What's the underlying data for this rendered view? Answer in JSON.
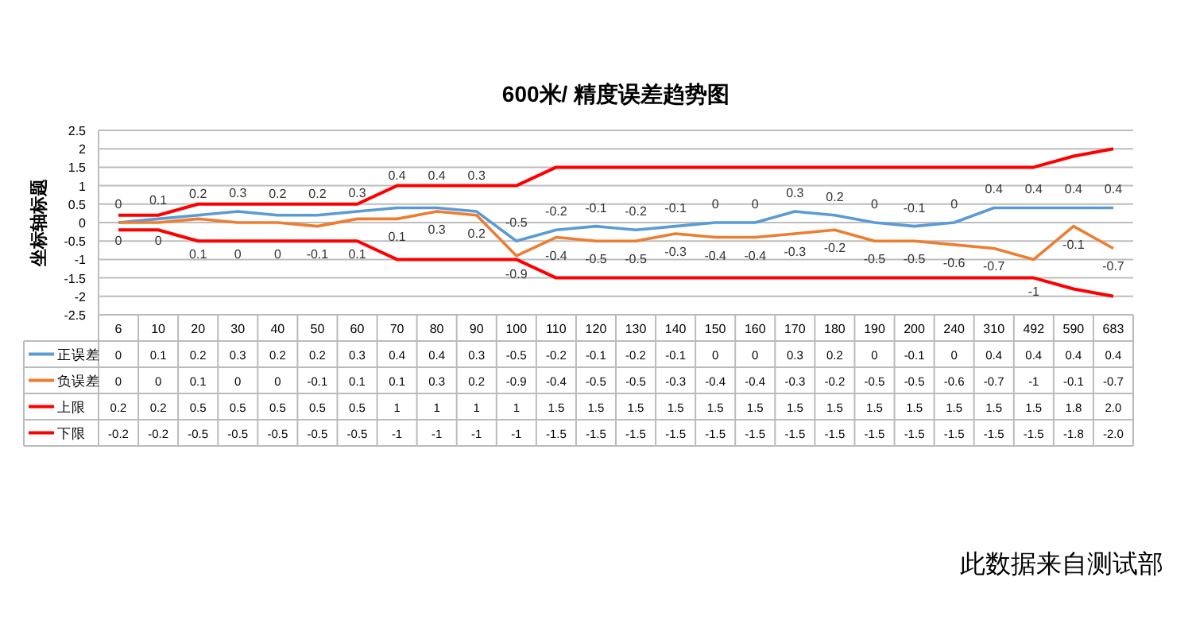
{
  "chart_data": {
    "type": "line",
    "title": "600米/ 精度误差趋势图",
    "ylabel": "坐标轴标题",
    "categories": [
      "6",
      "10",
      "20",
      "30",
      "40",
      "50",
      "60",
      "70",
      "80",
      "90",
      "100",
      "110",
      "120",
      "130",
      "140",
      "150",
      "160",
      "170",
      "180",
      "190",
      "200",
      "240",
      "310",
      "492",
      "590",
      "683"
    ],
    "ylim": [
      -2.5,
      2.5
    ],
    "yticks": [
      -2.5,
      -2,
      -1.5,
      -1,
      -0.5,
      0,
      0.5,
      1,
      1.5,
      2,
      2.5
    ],
    "grid": "y",
    "legend": "bottom",
    "marker": "none",
    "line_style": "solid",
    "series": [
      {
        "name": "正误差",
        "color": "#5b9bd5",
        "values": [
          0,
          0.1,
          0.2,
          0.3,
          0.2,
          0.2,
          0.3,
          0.4,
          0.4,
          0.3,
          -0.5,
          -0.2,
          -0.1,
          -0.2,
          -0.1,
          0,
          0,
          0.3,
          0.2,
          0,
          -0.1,
          0,
          0.4,
          0.4,
          0.4,
          0.4
        ],
        "value_labels": [
          "0",
          "0.1",
          "0.2",
          "0.3",
          "0.2",
          "0.2",
          "0.3",
          "0.4",
          "0.4",
          "0.3",
          "-0.5",
          "-0.2",
          "-0.1",
          "-0.2",
          "-0.1",
          "0",
          "0",
          "0.3",
          "0.2",
          "0",
          "-0.1",
          "0",
          "0.4",
          "0.4",
          "0.4",
          "0.4"
        ]
      },
      {
        "name": "负误差",
        "color": "#ed7d31",
        "values": [
          0,
          0,
          0.1,
          0,
          0,
          -0.1,
          0.1,
          0.1,
          0.3,
          0.2,
          -0.9,
          -0.4,
          -0.5,
          -0.5,
          -0.3,
          -0.4,
          -0.4,
          -0.3,
          -0.2,
          -0.5,
          -0.5,
          -0.6,
          -0.7,
          -1,
          -0.1,
          -0.7
        ],
        "value_labels": [
          "0",
          "0",
          "0.1",
          "0",
          "0",
          "-0.1",
          "0.1",
          "0.1",
          "0.3",
          "0.2",
          "-0.9",
          "-0.4",
          "-0.5",
          "-0.5",
          "-0.3",
          "-0.4",
          "-0.4",
          "-0.3",
          "-0.2",
          "-0.5",
          "-0.5",
          "-0.6",
          "-0.7",
          "-1",
          "-0.1",
          "-0.7"
        ]
      },
      {
        "name": "上限",
        "color": "#ff0000",
        "values": [
          0.2,
          0.2,
          0.5,
          0.5,
          0.5,
          0.5,
          0.5,
          1,
          1,
          1,
          1,
          1.5,
          1.5,
          1.5,
          1.5,
          1.5,
          1.5,
          1.5,
          1.5,
          1.5,
          1.5,
          1.5,
          1.5,
          1.5,
          1.8,
          2.0
        ],
        "value_labels": [
          "0.2",
          "0.2",
          "0.5",
          "0.5",
          "0.5",
          "0.5",
          "0.5",
          "1",
          "1",
          "1",
          "1",
          "1.5",
          "1.5",
          "1.5",
          "1.5",
          "1.5",
          "1.5",
          "1.5",
          "1.5",
          "1.5",
          "1.5",
          "1.5",
          "1.5",
          "1.5",
          "1.8",
          "2.0"
        ]
      },
      {
        "name": "下限",
        "color": "#ff0000",
        "values": [
          -0.2,
          -0.2,
          -0.5,
          -0.5,
          -0.5,
          -0.5,
          -0.5,
          -1,
          -1,
          -1,
          -1,
          -1.5,
          -1.5,
          -1.5,
          -1.5,
          -1.5,
          -1.5,
          -1.5,
          -1.5,
          -1.5,
          -1.5,
          -1.5,
          -1.5,
          -1.5,
          -1.8,
          -2.0
        ],
        "value_labels": [
          "-0.2",
          "-0.2",
          "-0.5",
          "-0.5",
          "-0.5",
          "-0.5",
          "-0.5",
          "-1",
          "-1",
          "-1",
          "-1",
          "-1.5",
          "-1.5",
          "-1.5",
          "-1.5",
          "-1.5",
          "-1.5",
          "-1.5",
          "-1.5",
          "-1.5",
          "-1.5",
          "-1.5",
          "-1.5",
          "-1.5",
          "-1.8",
          "-2.0"
        ]
      }
    ],
    "annotations": [
      "此数据来自测试部"
    ]
  }
}
